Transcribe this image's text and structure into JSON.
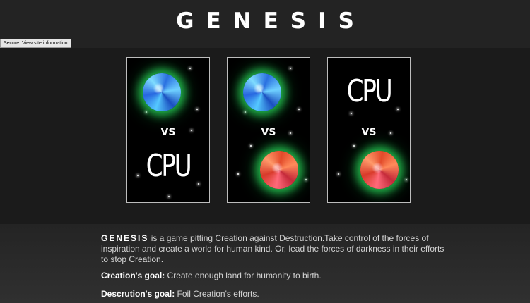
{
  "header": {
    "title": "GENESIS",
    "tooltip": "Secure. View site information"
  },
  "cards": [
    {
      "vs": "VS",
      "cpu": "CPU"
    },
    {
      "vs": "VS"
    },
    {
      "vs": "VS",
      "cpu": "CPU"
    }
  ],
  "description": {
    "brand": "GENESIS",
    "intro": " is a game pitting Creation against Destruction.Take control of the forces of inspiration and create a world for human kind. Or, lead the forces of darkness in their efforts to stop Creation.",
    "creation_label": "Creation's goal:",
    "creation_text": " Create enough land for humanity to birth.",
    "destruction_label": "Descrution's goal:",
    "destruction_text": " Foil Creation's efforts."
  }
}
